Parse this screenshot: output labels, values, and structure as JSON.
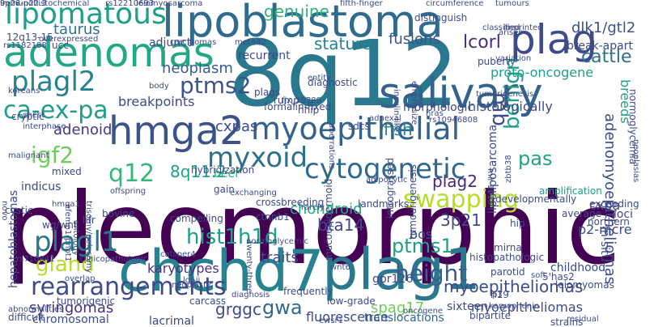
{
  "words": [
    {
      "text": "pleomorphic",
      "color": "#440154"
    },
    {
      "text": "8q12",
      "color": "#2a788e"
    },
    {
      "text": "chchd7",
      "color": "#26838f"
    },
    {
      "text": "plag1",
      "color": "#2a788e"
    },
    {
      "text": "lipoblastoma",
      "color": "#2f6b8e"
    },
    {
      "text": "adenomas",
      "color": "#22a884"
    },
    {
      "text": "salivary",
      "color": "#33638d"
    },
    {
      "text": "hmga2",
      "color": "#3b528b"
    },
    {
      "text": "plag",
      "color": "#3e4a89"
    },
    {
      "text": "lipomatous",
      "color": "#1f9e89"
    },
    {
      "text": "plagl2",
      "color": "#25858e"
    },
    {
      "text": "myoepithelial",
      "color": "#33638d"
    },
    {
      "text": "ca-ex-pa",
      "color": "#1f9e89"
    },
    {
      "text": "cytogenetic",
      "color": "#30698e"
    },
    {
      "text": "myxoid",
      "color": "#2d708e"
    },
    {
      "text": "plagl1",
      "color": "#2a788e"
    },
    {
      "text": "hist1h1d",
      "color": "#1f9e89"
    },
    {
      "text": "rearrangements",
      "color": "#3e4a89"
    },
    {
      "text": "gland",
      "color": "#b5de2b"
    },
    {
      "text": "swapping",
      "color": "#b5de2b"
    },
    {
      "text": "height",
      "color": "#355f8d"
    },
    {
      "text": "igf2",
      "color": "#6ece58"
    },
    {
      "text": "q12",
      "color": "#35b779"
    },
    {
      "text": "pas",
      "color": "#20a486"
    },
    {
      "text": "ptms2",
      "color": "#3b528b"
    },
    {
      "text": "ptms1",
      "color": "#1fa088"
    },
    {
      "text": "genuine",
      "color": "#2db27d"
    },
    {
      "text": "cattle",
      "color": "#2d708e"
    },
    {
      "text": "lcorl",
      "color": "#472d7b"
    },
    {
      "text": "dlk1/gtl2",
      "color": "#3b528b"
    },
    {
      "text": "taurus",
      "color": "#2c728e"
    },
    {
      "text": "neoplasm",
      "color": "#355f8d"
    },
    {
      "text": "fusions",
      "color": "#3b528b"
    },
    {
      "text": "stature",
      "color": "#26828e"
    },
    {
      "text": "breakpoints",
      "color": "#3e4a89"
    },
    {
      "text": "adenoid",
      "color": "#443983"
    },
    {
      "text": "cxpas",
      "color": "#3e4a89"
    },
    {
      "text": "8q11.2",
      "color": "#1fa088"
    },
    {
      "text": "plag2",
      "color": "#482878"
    },
    {
      "text": "fish",
      "color": "#26828e"
    },
    {
      "text": "mb",
      "color": "#3e4a89"
    },
    {
      "text": "benign",
      "color": "#1f9e89"
    },
    {
      "text": "adenomyoepitheliomas",
      "color": "#3e4a89"
    },
    {
      "text": "chondroid",
      "color": "#22a884"
    },
    {
      "text": "3p21",
      "color": "#3e4a89"
    },
    {
      "text": "bos",
      "color": "#3b528b"
    },
    {
      "text": "bta14",
      "color": "#3e4a89"
    },
    {
      "text": "gwa",
      "color": "#31688e"
    },
    {
      "text": "grggc",
      "color": "#3e4a89"
    },
    {
      "text": "myoepitheliomas",
      "color": "#3e4a89"
    },
    {
      "text": "myoepitheliomas",
      "color": "#3e4a89"
    },
    {
      "text": "spag17",
      "color": "#6ece58"
    },
    {
      "text": "karyotypes",
      "color": "#46327e"
    },
    {
      "text": "traits",
      "color": "#3e4a89"
    },
    {
      "text": "syringomas",
      "color": "#46327e"
    },
    {
      "text": "fluorescence",
      "color": "#3e4a89"
    },
    {
      "text": "translocations",
      "color": "#31688e"
    },
    {
      "text": "mixed",
      "color": "#3e4a89"
    },
    {
      "text": "indicus",
      "color": "#3e4a89"
    },
    {
      "text": "beef",
      "color": "#2db27d"
    },
    {
      "text": "proto-oncogene",
      "color": "#1fa088"
    },
    {
      "text": "histologically",
      "color": "#3e4a89"
    },
    {
      "text": "morphologic",
      "color": "#3e4a89"
    },
    {
      "text": "amplification",
      "color": "#1f9e89"
    },
    {
      "text": "breeds",
      "color": "#1fa088"
    },
    {
      "text": "normoglycemia",
      "color": "#3e4a89"
    },
    {
      "text": "break-apart",
      "color": "#3e4a89"
    },
    {
      "text": "recurrent",
      "color": "#3e4a89"
    },
    {
      "text": "diagnostic",
      "color": "#3e4a89"
    },
    {
      "text": "hybridization",
      "color": "#3e4a89"
    },
    {
      "text": "crossbreeding",
      "color": "#3e4a89"
    },
    {
      "text": "landmarks",
      "color": "#3e4a89"
    },
    {
      "text": "lipoliposarcoma",
      "color": "#3e4a89"
    },
    {
      "text": "tumourigenesis",
      "color": "#3e4a89"
    },
    {
      "text": "intrograssed",
      "color": "#3e4a89"
    },
    {
      "text": "mucoepidermoid",
      "color": "#3e4a89"
    },
    {
      "text": "hepatoblastomas",
      "color": "#3e4a89"
    },
    {
      "text": "chromosomal",
      "color": "#3e4a89"
    },
    {
      "text": "lacrimal",
      "color": "#3e4a89"
    },
    {
      "text": "difficult",
      "color": "#3e4a89"
    },
    {
      "text": "tumorigenic",
      "color": "#3e4a89"
    },
    {
      "text": "frequently",
      "color": "#3e4a89"
    },
    {
      "text": "gpr126",
      "color": "#3e4a89"
    },
    {
      "text": "lgf-ii",
      "color": "#3e4a89"
    },
    {
      "text": "overlap",
      "color": "#3e4a89"
    },
    {
      "text": "parotid",
      "color": "#3e4a89"
    },
    {
      "text": "childhood",
      "color": "#3e4a89"
    },
    {
      "text": "leiomyomas",
      "color": "#3e4a89"
    },
    {
      "text": "bipartite",
      "color": "#3e4a89"
    },
    {
      "text": "sixteen",
      "color": "#3e4a89"
    },
    {
      "text": "in-situ",
      "color": "#3e4a89"
    },
    {
      "text": "loci",
      "color": "#3e4a89"
    },
    {
      "text": "cxpa",
      "color": "#3e4a89"
    },
    {
      "text": "p2-mcre",
      "color": "#3e4a89"
    },
    {
      "text": "5'has2",
      "color": "#3e4a89"
    },
    {
      "text": "h19",
      "color": "#3e4a89"
    },
    {
      "text": "ctnnb1",
      "color": "#3e4a89"
    },
    {
      "text": "ucc",
      "color": "#3e4a89"
    },
    {
      "text": "12q13-15",
      "color": "#3e4a89"
    },
    {
      "text": "adjunct",
      "color": "#3e4a89"
    },
    {
      "text": "puberty",
      "color": "#3e4a89"
    },
    {
      "text": "rump",
      "color": "#3e4a89"
    },
    {
      "text": "hhip",
      "color": "#3e4a89"
    },
    {
      "text": "sdcs",
      "color": "#3e4a89"
    },
    {
      "text": "distinguish",
      "color": "#3e4a89"
    },
    {
      "text": "leiomyosarcoma",
      "color": "#3e4a89"
    },
    {
      "text": "fifth-finger",
      "color": "#3e4a89"
    },
    {
      "text": "circumference",
      "color": "#3e4a89"
    },
    {
      "text": "tumours",
      "color": "#3e4a89"
    },
    {
      "text": "classified",
      "color": "#3e4a89"
    },
    {
      "text": "interphase",
      "color": "#3e4a89"
    },
    {
      "text": "cryptic",
      "color": "#3e4a89"
    },
    {
      "text": "malignant",
      "color": "#3e4a89"
    },
    {
      "text": "koreans",
      "color": "#3e4a89"
    },
    {
      "text": "chest",
      "color": "#3e4a89"
    },
    {
      "text": "body",
      "color": "#3e4a89"
    },
    {
      "text": "carcinomas",
      "color": "#3e4a89"
    },
    {
      "text": "overexpressed",
      "color": "#3e4a89"
    },
    {
      "text": "aberrations",
      "color": "#3e4a89"
    },
    {
      "text": "entity",
      "color": "#3e4a89"
    },
    {
      "text": "insulin-like",
      "color": "#3e4a89"
    },
    {
      "text": "emphasize",
      "color": "#3e4a89"
    },
    {
      "text": "arises",
      "color": "#3e4a89"
    },
    {
      "text": "variation",
      "color": "#3e4a89"
    },
    {
      "text": "imprinted",
      "color": "#3e4a89"
    },
    {
      "text": "rarely",
      "color": "#3e4a89"
    },
    {
      "text": "adipocytic",
      "color": "#3e4a89"
    },
    {
      "text": "developmentally",
      "color": "#3e4a89"
    },
    {
      "text": "exchanging",
      "color": "#3e4a89"
    },
    {
      "text": "gain",
      "color": "#3e4a89"
    },
    {
      "text": "offspring",
      "color": "#3e4a89"
    },
    {
      "text": "bovine",
      "color": "#3e4a89"
    },
    {
      "text": "cystic",
      "color": "#3e4a89"
    },
    {
      "text": "wg/wnt",
      "color": "#3e4a89"
    },
    {
      "text": "hmga1",
      "color": "#3e4a89"
    },
    {
      "text": "efemp1-pnpt1",
      "color": "#3e4a89"
    },
    {
      "text": "lifr",
      "color": "#3e4a89"
    },
    {
      "text": "compelling",
      "color": "#3e4a89"
    },
    {
      "text": "ontology",
      "color": "#3e4a89"
    },
    {
      "text": "trisomy/polysomy",
      "color": "#3e4a89"
    },
    {
      "text": "wnt6",
      "color": "#3e4a89"
    },
    {
      "text": "novo",
      "color": "#3e4a89"
    },
    {
      "text": "neoplastic",
      "color": "#3e4a89"
    },
    {
      "text": "carcass",
      "color": "#3e4a89"
    },
    {
      "text": "diagnosis",
      "color": "#3e4a89"
    },
    {
      "text": "low-grade",
      "color": "#3e4a89"
    },
    {
      "text": "ewsr1",
      "color": "#3e4a89"
    },
    {
      "text": "mirna",
      "color": "#3e4a89"
    },
    {
      "text": "histopathologic",
      "color": "#3e4a89"
    },
    {
      "text": "karyophenin",
      "color": "#3e4a89"
    },
    {
      "text": "p3",
      "color": "#3e4a89"
    },
    {
      "text": "soft",
      "color": "#3e4a89"
    },
    {
      "text": "hip",
      "color": "#3e4a89"
    },
    {
      "text": "average",
      "color": "#3e4a89"
    },
    {
      "text": "northern",
      "color": "#3e4a89"
    },
    {
      "text": "exceeding",
      "color": "#3e4a89"
    },
    {
      "text": "strains",
      "color": "#3e4a89"
    },
    {
      "text": "residual",
      "color": "#3e4a89"
    },
    {
      "text": "abnormalities",
      "color": "#3e4a89"
    },
    {
      "text": "oncogene",
      "color": "#3e4a89"
    },
    {
      "text": "plags",
      "color": "#3e4a89"
    },
    {
      "text": "formalin-fixed",
      "color": "#3e4a89"
    },
    {
      "text": "adnexal",
      "color": "#3e4a89"
    },
    {
      "text": "hras",
      "color": "#3e4a89"
    },
    {
      "text": "tumorigenesis",
      "color": "#3e4a89"
    },
    {
      "text": "mir-101a",
      "color": "#3e4a89"
    },
    {
      "text": "zbtb38",
      "color": "#3e4a89"
    },
    {
      "text": "twenty-three",
      "color": "#3e4a89"
    },
    {
      "text": "normoglycemic",
      "color": "#3e4a89"
    },
    {
      "text": "catsper4",
      "color": "#3e4a89"
    },
    {
      "text": "clinicopathologic",
      "color": "#3e4a89"
    },
    {
      "text": "met442",
      "color": "#3e4a89"
    },
    {
      "text": "9p23-p22.3",
      "color": "#3e4a89"
    },
    {
      "text": "rs12210693",
      "color": "#3e4a89"
    },
    {
      "text": "rs1182188",
      "color": "#3e4a89"
    },
    {
      "text": "fjx_29289",
      "color": "#3e4a89"
    },
    {
      "text": "rs10946808",
      "color": "#3e4a89"
    },
    {
      "text": "rs710841",
      "color": "#3e4a89"
    },
    {
      "text": "neoplasias",
      "color": "#3e4a89"
    },
    {
      "text": "immunohistochemical",
      "color": "#3e4a89"
    }
  ]
}
